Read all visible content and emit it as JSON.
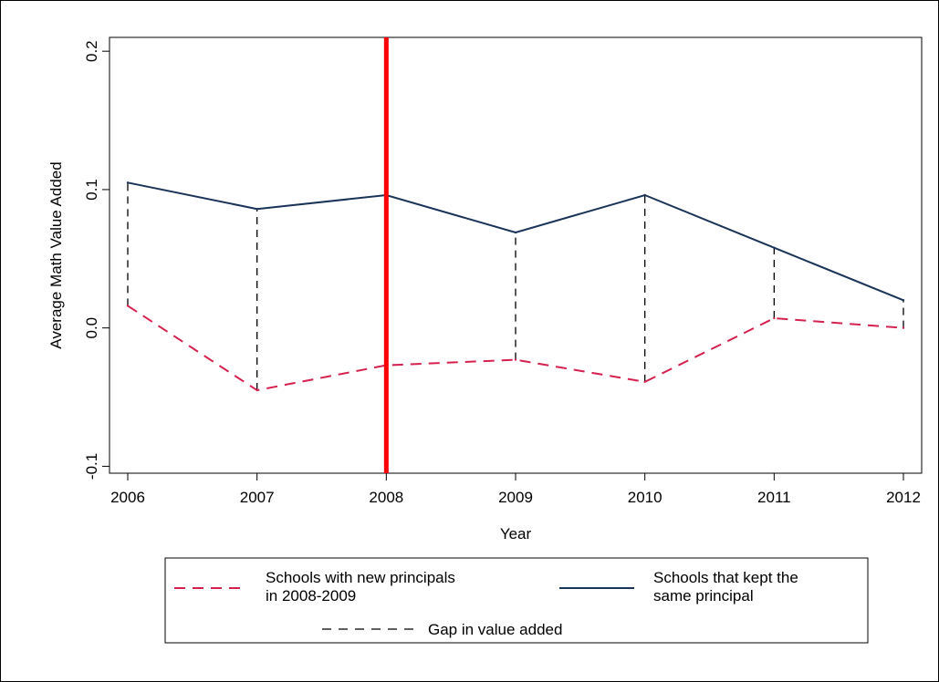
{
  "chart_data": {
    "type": "line",
    "x": [
      2006,
      2007,
      2008,
      2009,
      2010,
      2011,
      2012
    ],
    "x_tick_labels": [
      "2006",
      "2007",
      "2008",
      "2009",
      "2010",
      "2011",
      "2012"
    ],
    "xlabel": "Year",
    "ylabel": "Average Math Value Added",
    "ylim": [
      -0.105,
      0.21
    ],
    "y_ticks": [
      -0.1,
      0.0,
      0.1,
      0.2
    ],
    "y_tick_labels": [
      "-0.1",
      "0.0",
      "0.1",
      "0.2"
    ],
    "grid": false,
    "vertical_marker": {
      "x": 2008,
      "color": "#ff0000"
    },
    "series": [
      {
        "name": "Schools with new principals in 2008-2009",
        "legend_lines": [
          "Schools with new principals",
          "in 2008-2009"
        ],
        "values": [
          0.016,
          -0.045,
          -0.027,
          -0.023,
          -0.039,
          0.007,
          0.0
        ],
        "color": "#d6204e",
        "style": "dashed"
      },
      {
        "name": "Schools that kept the same principal",
        "legend_lines": [
          "Schools that kept the",
          "same principal"
        ],
        "values": [
          0.105,
          0.086,
          0.096,
          0.069,
          0.096,
          0.058,
          0.02
        ],
        "color": "#1a3358",
        "style": "solid"
      }
    ],
    "gap": {
      "name": "Gap in value added",
      "color": "#000000",
      "style": "dashed"
    },
    "legend_position": "bottom"
  }
}
